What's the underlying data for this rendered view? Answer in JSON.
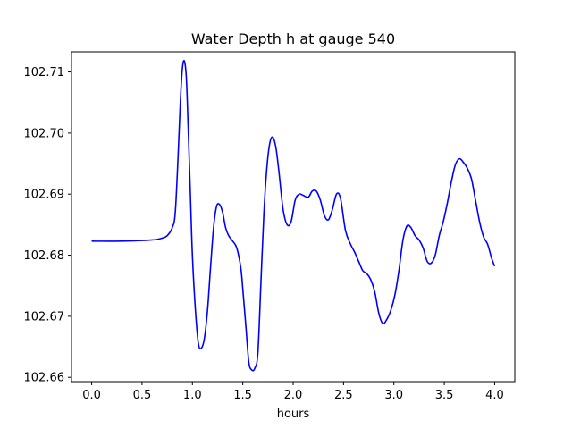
{
  "chart_data": {
    "type": "line",
    "title": "Water Depth h at gauge 540",
    "xlabel": "hours",
    "ylabel": "",
    "xlim": [
      -0.2,
      4.2
    ],
    "ylim": [
      102.6593,
      102.7133
    ],
    "x_ticks": [
      0.0,
      0.5,
      1.0,
      1.5,
      2.0,
      2.5,
      3.0,
      3.5,
      4.0
    ],
    "x_tick_labels": [
      "0.0",
      "0.5",
      "1.0",
      "1.5",
      "2.0",
      "2.5",
      "3.0",
      "3.5",
      "4.0"
    ],
    "y_ticks": [
      102.66,
      102.67,
      102.68,
      102.69,
      102.7,
      102.71
    ],
    "y_tick_labels": [
      "102.66",
      "102.67",
      "102.68",
      "102.69",
      "102.70",
      "102.71"
    ],
    "grid": false,
    "series": [
      {
        "color": "#0000ff",
        "x": [
          0.0,
          0.3,
          0.6,
          0.7,
          0.75,
          0.8,
          0.83,
          0.86,
          0.88,
          0.9,
          0.92,
          0.94,
          0.96,
          0.98,
          1.0,
          1.03,
          1.06,
          1.09,
          1.12,
          1.15,
          1.18,
          1.21,
          1.24,
          1.27,
          1.3,
          1.33,
          1.36,
          1.4,
          1.44,
          1.48,
          1.5,
          1.53,
          1.56,
          1.59,
          1.62,
          1.65,
          1.68,
          1.71,
          1.74,
          1.77,
          1.8,
          1.83,
          1.86,
          1.9,
          1.94,
          1.98,
          2.02,
          2.06,
          2.1,
          2.15,
          2.19,
          2.23,
          2.27,
          2.31,
          2.35,
          2.39,
          2.43,
          2.47,
          2.52,
          2.57,
          2.61,
          2.65,
          2.69,
          2.73,
          2.77,
          2.81,
          2.85,
          2.89,
          2.93,
          2.97,
          3.01,
          3.05,
          3.09,
          3.13,
          3.17,
          3.21,
          3.25,
          3.29,
          3.33,
          3.37,
          3.41,
          3.45,
          3.49,
          3.53,
          3.57,
          3.61,
          3.65,
          3.69,
          3.73,
          3.77,
          3.81,
          3.85,
          3.89,
          3.93,
          3.97,
          4.0
        ],
        "y": [
          102.6823,
          102.6823,
          102.6825,
          102.6828,
          102.6832,
          102.6845,
          102.687,
          102.697,
          102.705,
          102.7105,
          102.7118,
          102.709,
          102.7,
          102.69,
          102.68,
          102.671,
          102.6655,
          102.6648,
          102.6665,
          102.671,
          102.678,
          102.6845,
          102.688,
          102.6883,
          102.687,
          102.6845,
          102.6832,
          102.6823,
          102.6812,
          102.678,
          102.6745,
          102.6685,
          102.6625,
          102.6612,
          102.6615,
          102.664,
          102.6755,
          102.687,
          102.6945,
          102.6985,
          102.6993,
          102.6975,
          102.6935,
          102.6875,
          102.685,
          102.6855,
          102.689,
          102.69,
          102.6898,
          102.6895,
          102.6905,
          102.6905,
          102.689,
          102.6865,
          102.6858,
          102.6875,
          102.69,
          102.6893,
          102.684,
          102.6818,
          102.6805,
          102.679,
          102.6775,
          102.677,
          102.676,
          102.674,
          102.6705,
          102.6688,
          102.6695,
          102.671,
          102.6735,
          102.6775,
          102.6825,
          102.6848,
          102.6845,
          102.6832,
          102.6825,
          102.6812,
          102.679,
          102.6787,
          102.68,
          102.6832,
          102.6855,
          102.6885,
          102.692,
          102.6948,
          102.6958,
          102.6952,
          102.6942,
          102.6925,
          102.689,
          102.6855,
          102.683,
          102.6818,
          102.6795,
          102.6782
        ]
      }
    ]
  }
}
